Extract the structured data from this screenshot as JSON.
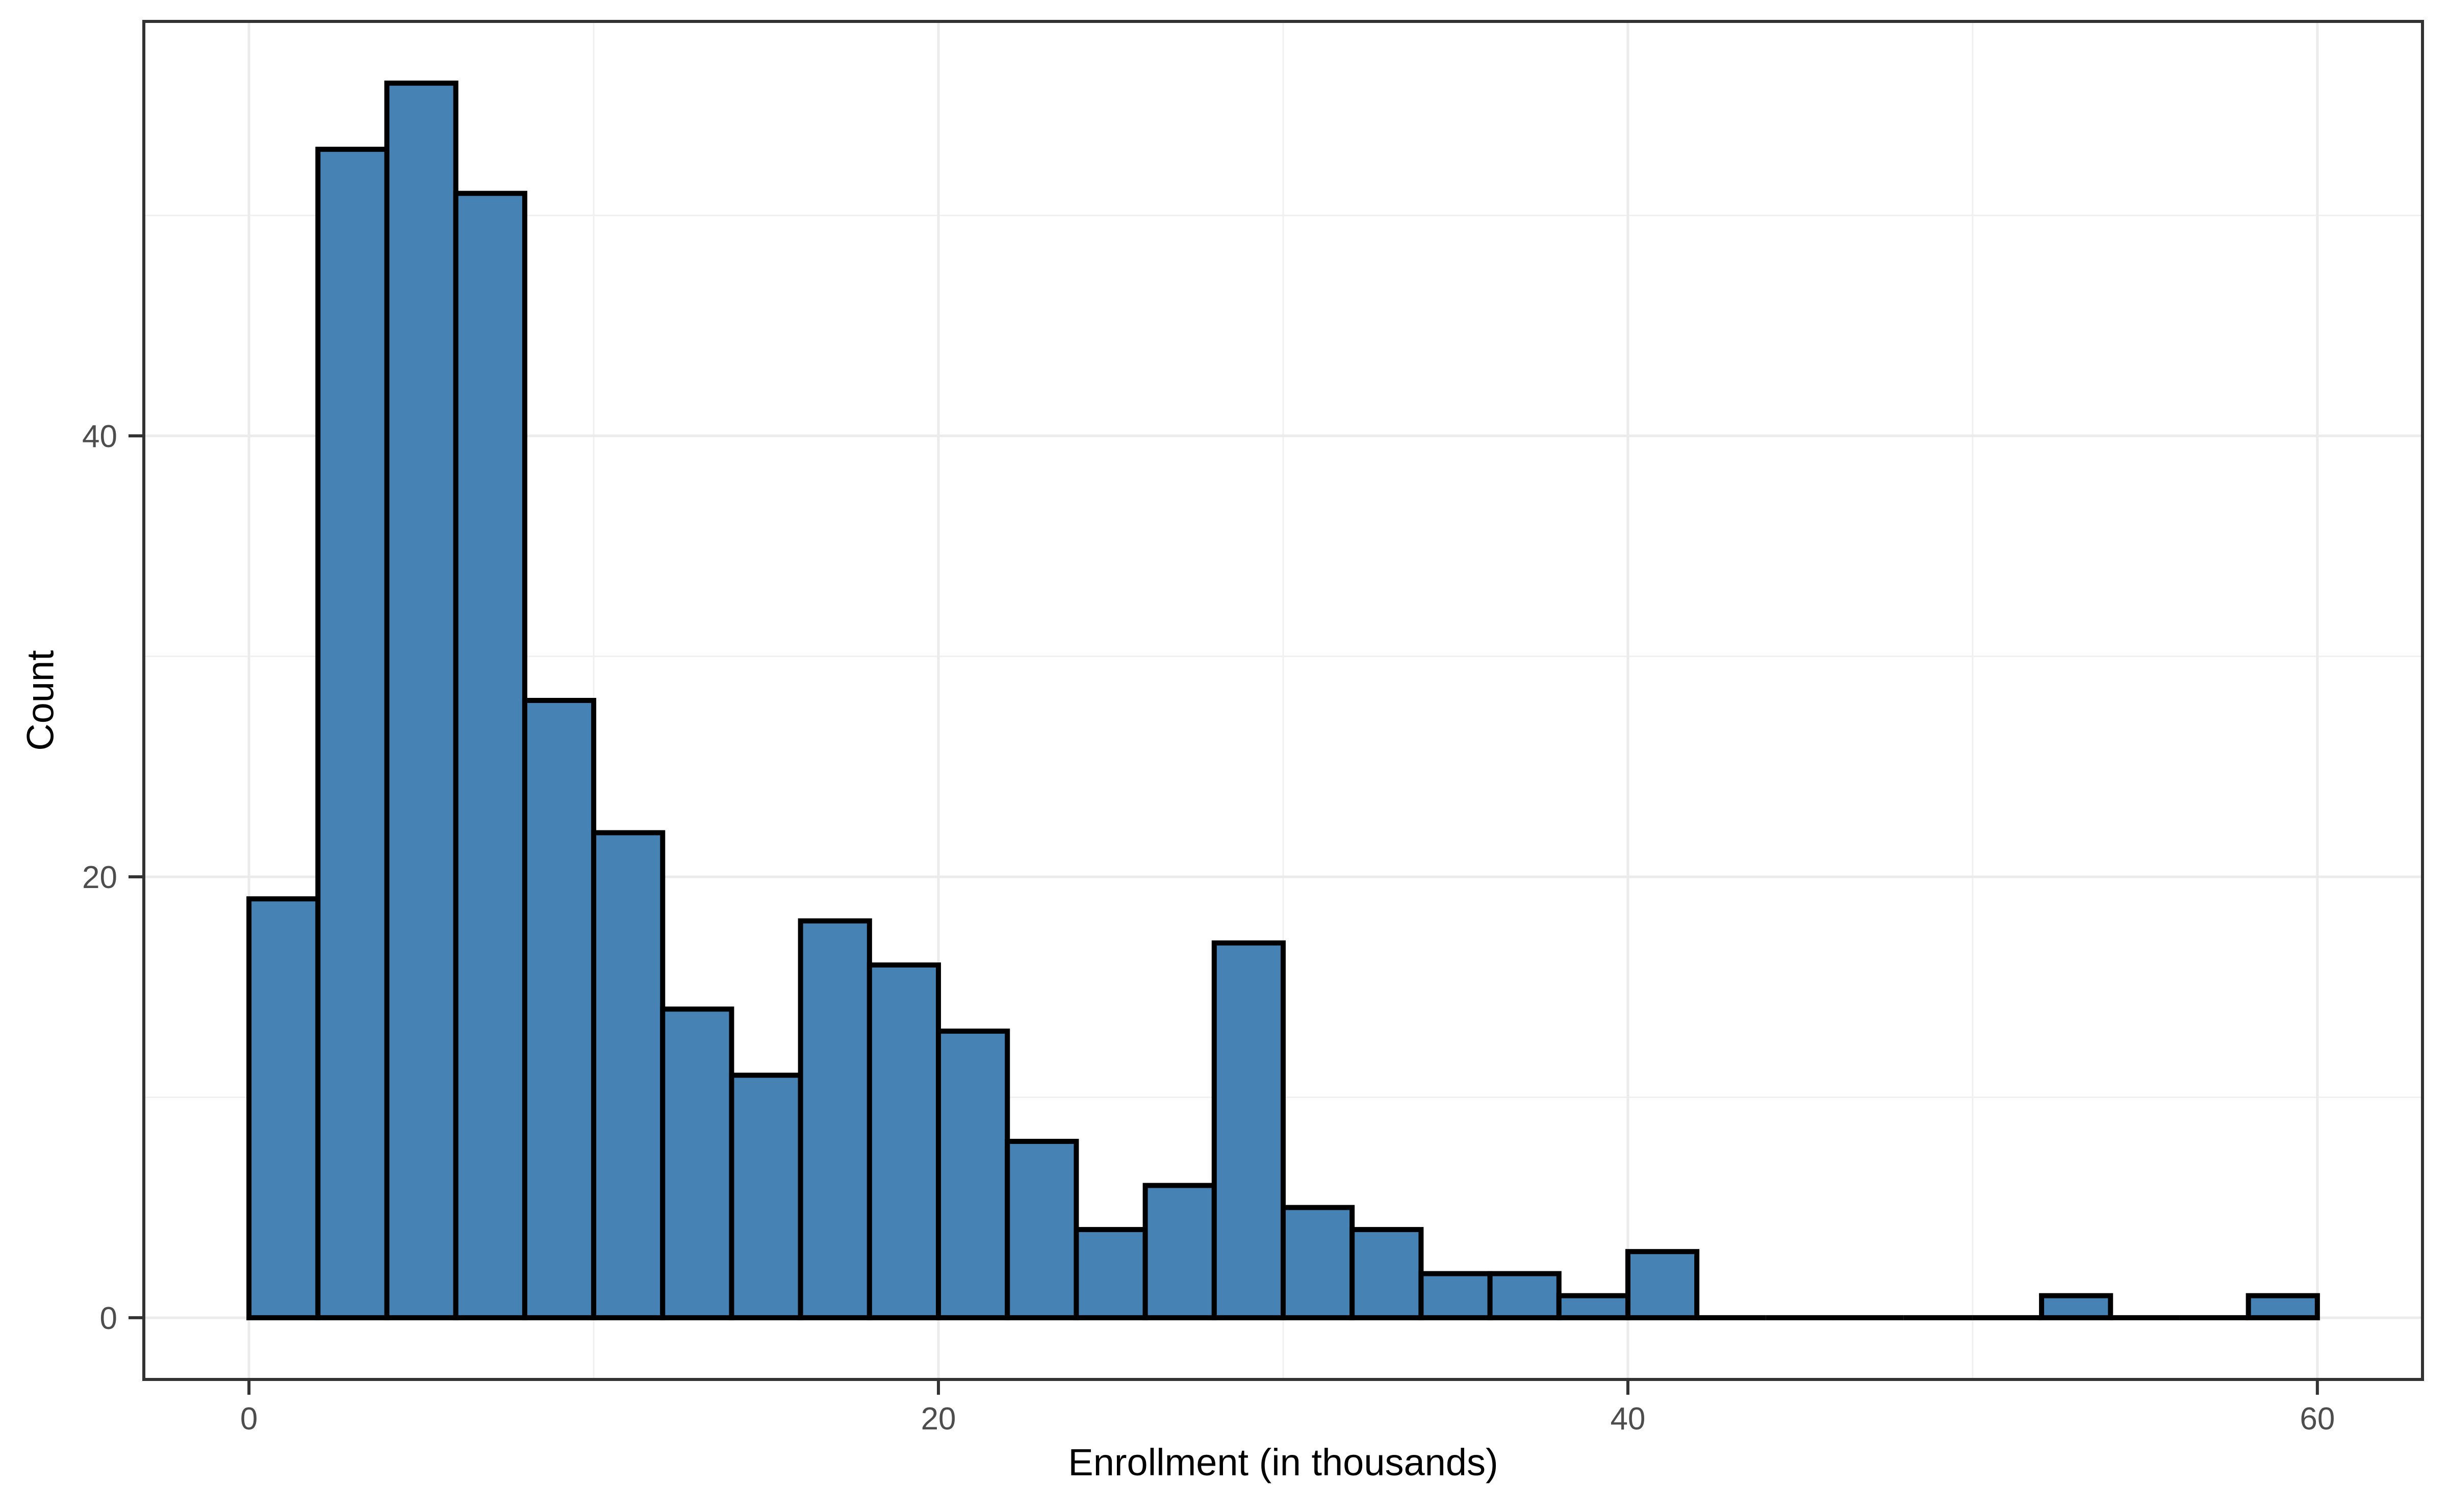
{
  "figure": {
    "background": "#FFFFFF"
  },
  "chart_data": {
    "type": "bar",
    "subtype": "histogram",
    "title": "",
    "xlabel": "Enrollment (in thousands)",
    "ylabel": "Count",
    "xlim": [
      -3.05,
      63.05
    ],
    "ylim": [
      -2.8,
      58.8
    ],
    "x_major_ticks": [
      0,
      20,
      40,
      60
    ],
    "y_major_ticks": [
      0,
      20,
      40
    ],
    "x_minor_gridlines": [
      10,
      30,
      50
    ],
    "y_minor_gridlines": [
      10,
      30,
      50
    ],
    "grid": true,
    "legend_position": "none",
    "bin_width": 2,
    "bins": [
      {
        "x0": 0,
        "x1": 2,
        "count": 19
      },
      {
        "x0": 2,
        "x1": 4,
        "count": 53
      },
      {
        "x0": 4,
        "x1": 6,
        "count": 56
      },
      {
        "x0": 6,
        "x1": 8,
        "count": 51
      },
      {
        "x0": 8,
        "x1": 10,
        "count": 28
      },
      {
        "x0": 10,
        "x1": 12,
        "count": 22
      },
      {
        "x0": 12,
        "x1": 14,
        "count": 14
      },
      {
        "x0": 14,
        "x1": 16,
        "count": 11
      },
      {
        "x0": 16,
        "x1": 18,
        "count": 18
      },
      {
        "x0": 18,
        "x1": 20,
        "count": 16
      },
      {
        "x0": 20,
        "x1": 22,
        "count": 13
      },
      {
        "x0": 22,
        "x1": 24,
        "count": 8
      },
      {
        "x0": 24,
        "x1": 26,
        "count": 4
      },
      {
        "x0": 26,
        "x1": 28,
        "count": 6
      },
      {
        "x0": 28,
        "x1": 30,
        "count": 17
      },
      {
        "x0": 30,
        "x1": 32,
        "count": 5
      },
      {
        "x0": 32,
        "x1": 34,
        "count": 4
      },
      {
        "x0": 34,
        "x1": 36,
        "count": 2
      },
      {
        "x0": 36,
        "x1": 38,
        "count": 2
      },
      {
        "x0": 38,
        "x1": 40,
        "count": 1
      },
      {
        "x0": 40,
        "x1": 42,
        "count": 3
      },
      {
        "x0": 42,
        "x1": 44,
        "count": 0
      },
      {
        "x0": 44,
        "x1": 46,
        "count": 0
      },
      {
        "x0": 46,
        "x1": 48,
        "count": 0
      },
      {
        "x0": 48,
        "x1": 50,
        "count": 0
      },
      {
        "x0": 50,
        "x1": 52,
        "count": 0
      },
      {
        "x0": 52,
        "x1": 54,
        "count": 1
      },
      {
        "x0": 54,
        "x1": 56,
        "count": 0
      },
      {
        "x0": 56,
        "x1": 58,
        "count": 0
      },
      {
        "x0": 58,
        "x1": 60,
        "count": 1
      }
    ],
    "colors": {
      "bar_fill": "#4682B4",
      "bar_stroke": "#000000",
      "panel_background": "#FFFFFF",
      "grid_major": "#EBEBEB",
      "grid_minor": "#F0F0F0",
      "panel_border": "#333333",
      "tick_mark": "#333333",
      "tick_label": "#4D4D4D",
      "axis_title": "#000000"
    }
  }
}
